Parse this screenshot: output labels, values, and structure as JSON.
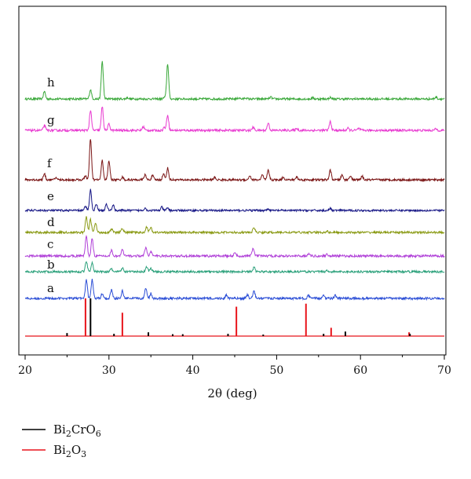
{
  "chart_data": {
    "type": "line",
    "title": "",
    "xlabel": "2θ (deg)",
    "ylabel": "",
    "xlim": [
      20,
      70
    ],
    "xticks": [
      "20",
      "30",
      "40",
      "50",
      "60",
      "70"
    ],
    "y_ticks_shown": false,
    "grid": false,
    "legend_placement": "bottom-left",
    "legend": [
      {
        "label_main": "Bi",
        "sub1": "2",
        "label_mid": "CrO",
        "sub2": "6",
        "label_end": "",
        "color": "#000000"
      },
      {
        "label_main": "Bi",
        "sub1": "2",
        "label_mid": "O",
        "sub2": "3",
        "label_end": "",
        "color": "#e8141b"
      }
    ],
    "series": [
      {
        "name": "h",
        "color": "#3aa83a",
        "peaks": [
          [
            22.3,
            0.32
          ],
          [
            27.8,
            0.4
          ],
          [
            29.2,
            1.6
          ],
          [
            32.2,
            0.06
          ],
          [
            36.6,
            0.06
          ],
          [
            37.0,
            1.5
          ],
          [
            45.5,
            0.05
          ],
          [
            46.3,
            0.05
          ],
          [
            49.3,
            0.08
          ],
          [
            54.3,
            0.05
          ],
          [
            56.4,
            0.06
          ],
          [
            69.0,
            0.08
          ]
        ]
      },
      {
        "name": "g",
        "color": "#e83ad0",
        "peaks": [
          [
            22.3,
            0.2
          ],
          [
            27.8,
            0.8
          ],
          [
            29.2,
            0.95
          ],
          [
            30.0,
            0.25
          ],
          [
            34.1,
            0.15
          ],
          [
            36.6,
            0.12
          ],
          [
            37.0,
            0.62
          ],
          [
            47.2,
            0.12
          ],
          [
            49.0,
            0.3
          ],
          [
            52.4,
            0.08
          ],
          [
            56.4,
            0.35
          ],
          [
            58.5,
            0.08
          ],
          [
            59.8,
            0.08
          ],
          [
            69.0,
            0.06
          ]
        ]
      },
      {
        "name": "f",
        "color": "#7a1414",
        "peaks": [
          [
            22.3,
            0.25
          ],
          [
            23.7,
            0.1
          ],
          [
            27.2,
            0.18
          ],
          [
            27.8,
            1.75
          ],
          [
            29.2,
            0.82
          ],
          [
            30.0,
            0.8
          ],
          [
            31.6,
            0.12
          ],
          [
            34.3,
            0.22
          ],
          [
            35.2,
            0.18
          ],
          [
            36.5,
            0.25
          ],
          [
            37.0,
            0.5
          ],
          [
            42.6,
            0.1
          ],
          [
            46.8,
            0.18
          ],
          [
            48.3,
            0.2
          ],
          [
            49.0,
            0.4
          ],
          [
            50.8,
            0.12
          ],
          [
            52.4,
            0.12
          ],
          [
            56.4,
            0.4
          ],
          [
            57.8,
            0.2
          ],
          [
            58.8,
            0.18
          ],
          [
            60.2,
            0.15
          ]
        ]
      },
      {
        "name": "e",
        "color": "#151585",
        "peaks": [
          [
            27.2,
            0.18
          ],
          [
            27.8,
            0.95
          ],
          [
            28.5,
            0.3
          ],
          [
            29.7,
            0.28
          ],
          [
            30.5,
            0.25
          ],
          [
            34.3,
            0.12
          ],
          [
            36.3,
            0.15
          ],
          [
            37.0,
            0.12
          ],
          [
            49.0,
            0.08
          ],
          [
            56.4,
            0.08
          ]
        ]
      },
      {
        "name": "d",
        "color": "#8a9a14",
        "peaks": [
          [
            27.3,
            0.65
          ],
          [
            27.8,
            0.55
          ],
          [
            28.4,
            0.4
          ],
          [
            30.3,
            0.15
          ],
          [
            31.6,
            0.18
          ],
          [
            34.5,
            0.25
          ],
          [
            35.0,
            0.2
          ],
          [
            47.3,
            0.22
          ],
          [
            56.0,
            0.06
          ]
        ]
      },
      {
        "name": "c",
        "color": "#b040d8",
        "peaks": [
          [
            27.3,
            0.8
          ],
          [
            28.0,
            0.7
          ],
          [
            30.3,
            0.22
          ],
          [
            31.6,
            0.25
          ],
          [
            34.4,
            0.35
          ],
          [
            35.0,
            0.2
          ],
          [
            45.0,
            0.12
          ],
          [
            47.2,
            0.32
          ],
          [
            53.8,
            0.1
          ],
          [
            56.0,
            0.08
          ]
        ]
      },
      {
        "name": "b",
        "color": "#2aa07a",
        "peaks": [
          [
            27.3,
            0.45
          ],
          [
            28.0,
            0.4
          ],
          [
            30.3,
            0.12
          ],
          [
            31.6,
            0.15
          ],
          [
            34.5,
            0.22
          ],
          [
            35.0,
            0.15
          ],
          [
            47.3,
            0.18
          ],
          [
            56.0,
            0.05
          ]
        ]
      },
      {
        "name": "a",
        "color": "#2b4ed6",
        "peaks": [
          [
            27.3,
            0.75
          ],
          [
            28.0,
            0.75
          ],
          [
            29.2,
            0.2
          ],
          [
            30.3,
            0.35
          ],
          [
            31.6,
            0.3
          ],
          [
            34.4,
            0.42
          ],
          [
            35.0,
            0.2
          ],
          [
            44.0,
            0.12
          ],
          [
            46.5,
            0.15
          ],
          [
            47.3,
            0.3
          ],
          [
            53.8,
            0.12
          ],
          [
            55.6,
            0.15
          ],
          [
            57.0,
            0.12
          ]
        ]
      }
    ],
    "references": [
      {
        "name": "Bi2O3",
        "color": "#e8141b",
        "sticks": [
          [
            27.2,
            1.0
          ],
          [
            31.6,
            0.62
          ],
          [
            45.2,
            0.78
          ],
          [
            53.5,
            0.86
          ],
          [
            56.5,
            0.22
          ],
          [
            65.8,
            0.1
          ]
        ]
      },
      {
        "name": "Bi2CrO6",
        "color": "#000000",
        "sticks": [
          [
            25.0,
            0.08
          ],
          [
            27.8,
            1.0
          ],
          [
            30.6,
            0.06
          ],
          [
            34.7,
            0.1
          ],
          [
            37.6,
            0.05
          ],
          [
            38.8,
            0.05
          ],
          [
            44.2,
            0.06
          ],
          [
            48.4,
            0.04
          ],
          [
            55.6,
            0.06
          ],
          [
            58.2,
            0.12
          ],
          [
            65.9,
            0.06
          ]
        ]
      }
    ]
  }
}
